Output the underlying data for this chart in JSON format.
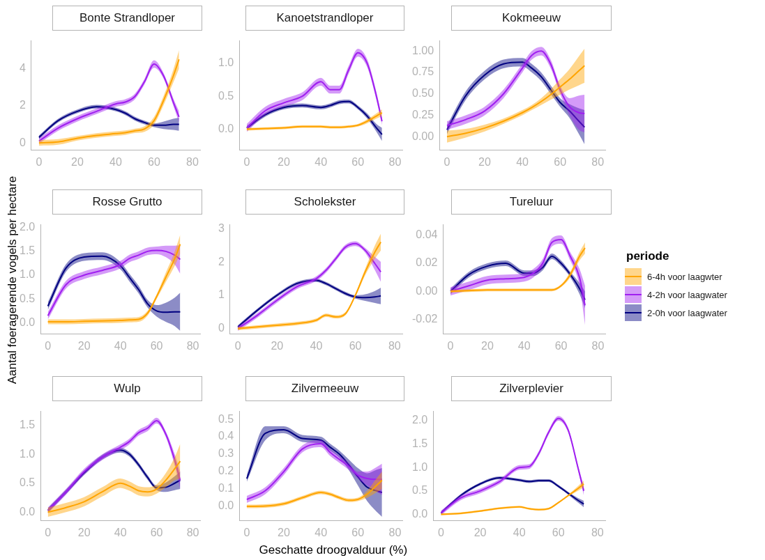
{
  "chart_data": [
    {
      "type": "line",
      "title": "Bonte Strandloper",
      "x": [
        0,
        10,
        20,
        30,
        40,
        45,
        50,
        55,
        60,
        65,
        70,
        73
      ],
      "xlim": [
        -4,
        84
      ],
      "xticks": [
        0,
        20,
        40,
        60,
        80
      ],
      "ylim": [
        -0.4,
        5.5
      ],
      "yticks": [
        0,
        2,
        4
      ],
      "grid": false,
      "legend": false,
      "marker": "none",
      "series": [
        {
          "color": "#ffa500",
          "values": [
            0,
            0.05,
            0.25,
            0.4,
            0.5,
            0.55,
            0.65,
            0.75,
            1.2,
            2.3,
            3.6,
            4.5
          ],
          "lower": [
            -0.15,
            -0.1,
            0.13,
            0.28,
            0.38,
            0.43,
            0.53,
            0.6,
            1.0,
            2.05,
            3.25,
            4.0
          ],
          "upper": [
            0.15,
            0.2,
            0.37,
            0.52,
            0.62,
            0.67,
            0.77,
            0.9,
            1.4,
            2.55,
            3.95,
            5.0
          ]
        },
        {
          "color": "#a020f0",
          "values": [
            0.1,
            0.8,
            1.3,
            1.7,
            2.1,
            2.2,
            2.5,
            3.3,
            4.25,
            3.6,
            2.2,
            1.4
          ],
          "lower": [
            -0.05,
            0.65,
            1.15,
            1.55,
            1.95,
            2.05,
            2.35,
            3.15,
            4.05,
            3.45,
            2.0,
            1.1
          ],
          "upper": [
            0.25,
            0.95,
            1.45,
            1.85,
            2.25,
            2.35,
            2.65,
            3.45,
            4.45,
            3.75,
            2.4,
            1.7
          ]
        },
        {
          "color": "#000080",
          "values": [
            0.3,
            1.2,
            1.7,
            1.95,
            1.8,
            1.6,
            1.3,
            1.1,
            0.95,
            0.95,
            1.0,
            1.0
          ],
          "lower": [
            0.2,
            1.1,
            1.6,
            1.85,
            1.7,
            1.5,
            1.2,
            1.0,
            0.85,
            0.75,
            0.7,
            0.65
          ],
          "upper": [
            0.4,
            1.3,
            1.8,
            2.05,
            1.9,
            1.7,
            1.4,
            1.2,
            1.05,
            1.15,
            1.3,
            1.35
          ]
        }
      ]
    },
    {
      "type": "line",
      "title": "Kanoetstrandloper",
      "x": [
        0,
        10,
        20,
        30,
        40,
        45,
        50,
        55,
        60,
        65,
        70,
        73
      ],
      "xlim": [
        -4,
        84
      ],
      "xticks": [
        0,
        20,
        40,
        60,
        80
      ],
      "ylim": [
        -0.32,
        1.34
      ],
      "yticks": [
        {
          "value": 0,
          "label": "0.0"
        },
        {
          "value": 0.5,
          "label": "0.5"
        },
        {
          "value": 1,
          "label": "1.0"
        }
      ],
      "grid": false,
      "legend": false,
      "marker": "none",
      "series": [
        {
          "color": "#ffa500",
          "values": [
            0,
            0.01,
            0.02,
            0.04,
            0.04,
            0.03,
            0.03,
            0.04,
            0.06,
            0.12,
            0.2,
            0.25
          ],
          "lower": [
            -0.02,
            -0.01,
            0,
            0.02,
            0.02,
            0.01,
            0.01,
            0.02,
            0.04,
            0.09,
            0.16,
            0.2
          ],
          "upper": [
            0.02,
            0.03,
            0.04,
            0.06,
            0.06,
            0.05,
            0.05,
            0.06,
            0.08,
            0.15,
            0.24,
            0.3
          ]
        },
        {
          "color": "#a020f0",
          "values": [
            0.02,
            0.28,
            0.4,
            0.5,
            0.72,
            0.6,
            0.6,
            0.9,
            1.16,
            1.0,
            0.5,
            0.12
          ],
          "lower": [
            -0.04,
            0.22,
            0.34,
            0.44,
            0.66,
            0.54,
            0.54,
            0.84,
            1.1,
            0.94,
            0.44,
            0.06
          ],
          "upper": [
            0.08,
            0.34,
            0.46,
            0.56,
            0.78,
            0.66,
            0.66,
            0.96,
            1.22,
            1.06,
            0.56,
            0.18
          ]
        },
        {
          "color": "#000080",
          "values": [
            0.02,
            0.22,
            0.33,
            0.36,
            0.33,
            0.36,
            0.41,
            0.42,
            0.33,
            0.2,
            0.02,
            -0.08
          ],
          "lower": [
            -0.01,
            0.19,
            0.3,
            0.33,
            0.3,
            0.33,
            0.38,
            0.39,
            0.3,
            0.16,
            -0.04,
            -0.18
          ],
          "upper": [
            0.05,
            0.25,
            0.36,
            0.39,
            0.36,
            0.39,
            0.44,
            0.45,
            0.36,
            0.24,
            0.08,
            0.02
          ]
        }
      ]
    },
    {
      "type": "line",
      "title": "Kokmeeuw",
      "x": [
        0,
        10,
        20,
        30,
        40,
        45,
        50,
        55,
        60,
        65,
        70,
        73
      ],
      "xlim": [
        -4,
        84
      ],
      "xticks": [
        0,
        20,
        40,
        60,
        80
      ],
      "ylim": [
        -0.16,
        1.12
      ],
      "yticks": [
        {
          "value": 0,
          "label": "0.00"
        },
        {
          "value": 0.25,
          "label": "0.25"
        },
        {
          "value": 0.5,
          "label": "0.50"
        },
        {
          "value": 0.75,
          "label": "0.75"
        },
        {
          "value": 1,
          "label": "1.00"
        }
      ],
      "grid": false,
      "legend": false,
      "marker": "none",
      "series": [
        {
          "color": "#ffa500",
          "values": [
            0,
            0.04,
            0.1,
            0.18,
            0.28,
            0.34,
            0.41,
            0.49,
            0.58,
            0.67,
            0.77,
            0.83
          ],
          "lower": [
            -0.07,
            -0.01,
            0.06,
            0.15,
            0.25,
            0.31,
            0.37,
            0.43,
            0.49,
            0.55,
            0.6,
            0.63
          ],
          "upper": [
            0.07,
            0.09,
            0.14,
            0.21,
            0.31,
            0.37,
            0.45,
            0.55,
            0.67,
            0.79,
            0.94,
            1.03
          ]
        },
        {
          "color": "#a020f0",
          "values": [
            0.13,
            0.2,
            0.3,
            0.5,
            0.8,
            0.95,
            1.0,
            0.85,
            0.55,
            0.35,
            0.28,
            0.27
          ],
          "lower": [
            0.08,
            0.15,
            0.25,
            0.45,
            0.75,
            0.9,
            0.95,
            0.8,
            0.5,
            0.25,
            0.08,
            0.05
          ],
          "upper": [
            0.18,
            0.25,
            0.35,
            0.55,
            0.85,
            1.0,
            1.05,
            0.9,
            0.6,
            0.45,
            0.48,
            0.49
          ]
        },
        {
          "color": "#000080",
          "values": [
            0.08,
            0.48,
            0.72,
            0.85,
            0.87,
            0.8,
            0.7,
            0.55,
            0.4,
            0.3,
            0.18,
            0.11
          ],
          "lower": [
            0.03,
            0.43,
            0.67,
            0.8,
            0.82,
            0.75,
            0.65,
            0.5,
            0.35,
            0.22,
            0.03,
            -0.09
          ],
          "upper": [
            0.13,
            0.53,
            0.77,
            0.9,
            0.92,
            0.85,
            0.75,
            0.6,
            0.45,
            0.38,
            0.33,
            0.31
          ]
        }
      ]
    },
    {
      "type": "line",
      "title": "Rosse Grutto",
      "ylabel": "Aantal foeragerende vogels per hectare",
      "x": [
        0,
        10,
        20,
        30,
        40,
        45,
        50,
        55,
        60,
        65,
        70,
        73
      ],
      "xlim": [
        -4,
        84
      ],
      "xticks": [
        0,
        20,
        40,
        60,
        80
      ],
      "ylim": [
        -0.24,
        2.06
      ],
      "yticks": [
        {
          "value": 0,
          "label": "0.0"
        },
        {
          "value": 0.5,
          "label": "0.5"
        },
        {
          "value": 1,
          "label": "1.0"
        },
        {
          "value": 1.5,
          "label": "1.5"
        },
        {
          "value": 2,
          "label": "2.0"
        }
      ],
      "grid": false,
      "legend": false,
      "marker": "none",
      "series": [
        {
          "color": "#ffa500",
          "values": [
            0.02,
            0.02,
            0.03,
            0.04,
            0.05,
            0.06,
            0.07,
            0.2,
            0.55,
            0.95,
            1.35,
            1.65
          ],
          "lower": [
            -0.03,
            -0.03,
            -0.02,
            -0.01,
            0,
            0.01,
            0.02,
            0.15,
            0.5,
            0.85,
            1.2,
            1.45
          ],
          "upper": [
            0.07,
            0.07,
            0.08,
            0.09,
            0.1,
            0.11,
            0.12,
            0.25,
            0.6,
            1.05,
            1.5,
            1.85
          ]
        },
        {
          "color": "#a020f0",
          "values": [
            0.15,
            0.8,
            1.0,
            1.1,
            1.22,
            1.35,
            1.42,
            1.5,
            1.52,
            1.5,
            1.42,
            1.33
          ],
          "lower": [
            0.07,
            0.72,
            0.92,
            1.02,
            1.14,
            1.27,
            1.34,
            1.42,
            1.44,
            1.38,
            1.22,
            1.03
          ],
          "upper": [
            0.23,
            0.88,
            1.08,
            1.18,
            1.3,
            1.43,
            1.5,
            1.58,
            1.6,
            1.62,
            1.62,
            1.63
          ]
        },
        {
          "color": "#000080",
          "values": [
            0.35,
            1.15,
            1.38,
            1.4,
            1.2,
            0.95,
            0.7,
            0.4,
            0.25,
            0.22,
            0.23,
            0.23
          ],
          "lower": [
            0.27,
            1.07,
            1.3,
            1.32,
            1.12,
            0.87,
            0.62,
            0.32,
            0.13,
            0.02,
            -0.07,
            -0.17
          ],
          "upper": [
            0.43,
            1.23,
            1.46,
            1.48,
            1.28,
            1.03,
            0.78,
            0.48,
            0.37,
            0.42,
            0.53,
            0.63
          ]
        }
      ]
    },
    {
      "type": "line",
      "title": "Scholekster",
      "x": [
        0,
        10,
        20,
        30,
        40,
        45,
        50,
        55,
        60,
        65,
        70,
        73
      ],
      "xlim": [
        -4,
        84
      ],
      "xticks": [
        0,
        20,
        40,
        60,
        80
      ],
      "ylim": [
        -0.17,
        3.12
      ],
      "yticks": [
        0,
        1,
        2,
        3
      ],
      "grid": false,
      "legend": false,
      "marker": "none",
      "series": [
        {
          "color": "#ffa500",
          "values": [
            0,
            0.05,
            0.1,
            0.15,
            0.25,
            0.4,
            0.35,
            0.45,
            1.0,
            1.7,
            2.3,
            2.6
          ],
          "lower": [
            -0.05,
            0,
            0.05,
            0.1,
            0.2,
            0.35,
            0.3,
            0.4,
            0.95,
            1.6,
            2.1,
            2.35
          ],
          "upper": [
            0.05,
            0.1,
            0.15,
            0.2,
            0.3,
            0.45,
            0.4,
            0.5,
            1.05,
            1.8,
            2.5,
            2.85
          ]
        },
        {
          "color": "#a020f0",
          "values": [
            0,
            0.4,
            0.85,
            1.25,
            1.5,
            1.75,
            2.1,
            2.45,
            2.55,
            2.35,
            1.95,
            1.7
          ],
          "lower": [
            -0.07,
            0.33,
            0.78,
            1.18,
            1.43,
            1.68,
            2.03,
            2.38,
            2.48,
            2.28,
            1.75,
            1.4
          ],
          "upper": [
            0.07,
            0.47,
            0.92,
            1.32,
            1.57,
            1.82,
            2.17,
            2.52,
            2.62,
            2.42,
            2.15,
            2.0
          ]
        },
        {
          "color": "#000080",
          "values": [
            0.05,
            0.55,
            1.0,
            1.35,
            1.45,
            1.35,
            1.2,
            1.05,
            0.95,
            0.93,
            0.95,
            0.98
          ],
          "lower": [
            0,
            0.5,
            0.95,
            1.3,
            1.4,
            1.3,
            1.15,
            1.0,
            0.9,
            0.83,
            0.77,
            0.73
          ],
          "upper": [
            0.1,
            0.6,
            1.05,
            1.4,
            1.5,
            1.4,
            1.25,
            1.1,
            1.0,
            1.03,
            1.13,
            1.23
          ]
        }
      ]
    },
    {
      "type": "line",
      "title": "Tureluur",
      "legend_title": "periode",
      "x": [
        0,
        10,
        20,
        30,
        40,
        45,
        50,
        55,
        60,
        65,
        70,
        73
      ],
      "xlim": [
        -4,
        84
      ],
      "xticks": [
        0,
        20,
        40,
        60,
        80
      ],
      "ylim": [
        -0.0306,
        0.0476
      ],
      "yticks": [
        {
          "value": -0.02,
          "label": "-0.02"
        },
        {
          "value": 0,
          "label": "0.00"
        },
        {
          "value": 0.02,
          "label": "0.02"
        },
        {
          "value": 0.04,
          "label": "0.04"
        }
      ],
      "grid": false,
      "legend": "right",
      "marker": "none",
      "series": [
        {
          "name": "6-4h voor laagwter",
          "color": "#ffa500",
          "values": [
            0,
            0.0005,
            0.001,
            0.001,
            0.001,
            0.001,
            0.001,
            0.001,
            0.004,
            0.012,
            0.025,
            0.031
          ],
          "lower": [
            -0.001,
            -0.0005,
            0,
            0,
            0,
            0,
            0,
            0,
            0.003,
            0.01,
            0.022,
            0.027
          ],
          "upper": [
            0.001,
            0.0015,
            0.002,
            0.002,
            0.002,
            0.002,
            0.002,
            0.002,
            0.005,
            0.014,
            0.028,
            0.035
          ]
        },
        {
          "name": "4-2h voor laagwater",
          "color": "#a020f0",
          "values": [
            0,
            0.004,
            0.008,
            0.009,
            0.01,
            0.013,
            0.02,
            0.035,
            0.037,
            0.025,
            0.01,
            -0.01
          ],
          "lower": [
            -0.003,
            0.001,
            0.005,
            0.006,
            0.007,
            0.01,
            0.017,
            0.032,
            0.034,
            0.022,
            0.004,
            -0.024
          ],
          "upper": [
            0.003,
            0.007,
            0.011,
            0.012,
            0.013,
            0.016,
            0.023,
            0.038,
            0.04,
            0.028,
            0.016,
            0.004
          ]
        },
        {
          "name": "2-0h voor laagwater",
          "color": "#000080",
          "values": [
            0,
            0.012,
            0.018,
            0.02,
            0.013,
            0.013,
            0.017,
            0.025,
            0.02,
            0.012,
            0.002,
            -0.006
          ],
          "lower": [
            -0.002,
            0.01,
            0.016,
            0.018,
            0.011,
            0.011,
            0.015,
            0.023,
            0.018,
            0.01,
            -0.002,
            -0.012
          ],
          "upper": [
            0.002,
            0.014,
            0.02,
            0.022,
            0.015,
            0.015,
            0.019,
            0.027,
            0.022,
            0.014,
            0.006,
            0
          ]
        }
      ]
    },
    {
      "type": "line",
      "title": "Wulp",
      "x": [
        0,
        10,
        20,
        30,
        40,
        45,
        50,
        55,
        60,
        65,
        70,
        73
      ],
      "xlim": [
        -4,
        84
      ],
      "xticks": [
        0,
        20,
        40,
        60,
        80
      ],
      "ylim": [
        -0.15,
        1.74
      ],
      "yticks": [
        {
          "value": 0,
          "label": "0.0"
        },
        {
          "value": 0.5,
          "label": "0.5"
        },
        {
          "value": 1,
          "label": "1.0"
        },
        {
          "value": 1.5,
          "label": "1.5"
        }
      ],
      "grid": false,
      "legend": false,
      "marker": "none",
      "series": [
        {
          "color": "#ffa500",
          "values": [
            0,
            0.08,
            0.18,
            0.35,
            0.5,
            0.45,
            0.37,
            0.35,
            0.4,
            0.55,
            0.75,
            0.88
          ],
          "lower": [
            -0.08,
            0,
            0.1,
            0.27,
            0.42,
            0.37,
            0.29,
            0.27,
            0.32,
            0.43,
            0.55,
            0.58
          ],
          "upper": [
            0.08,
            0.16,
            0.26,
            0.43,
            0.58,
            0.53,
            0.45,
            0.43,
            0.48,
            0.67,
            0.95,
            1.18
          ]
        },
        {
          "color": "#a020f0",
          "values": [
            0.03,
            0.35,
            0.7,
            0.95,
            1.12,
            1.22,
            1.37,
            1.45,
            1.58,
            1.35,
            0.9,
            0.55
          ],
          "lower": [
            -0.02,
            0.3,
            0.65,
            0.9,
            1.07,
            1.17,
            1.32,
            1.4,
            1.53,
            1.3,
            0.8,
            0.4
          ],
          "upper": [
            0.08,
            0.4,
            0.75,
            1.0,
            1.17,
            1.27,
            1.42,
            1.5,
            1.63,
            1.4,
            1.0,
            0.7
          ]
        },
        {
          "color": "#000080",
          "values": [
            0.03,
            0.35,
            0.68,
            0.95,
            1.07,
            1.0,
            0.82,
            0.6,
            0.42,
            0.43,
            0.5,
            0.55
          ],
          "lower": [
            -0.01,
            0.31,
            0.64,
            0.91,
            1.03,
            0.96,
            0.78,
            0.56,
            0.38,
            0.35,
            0.38,
            0.4
          ],
          "upper": [
            0.07,
            0.39,
            0.72,
            0.99,
            1.11,
            1.04,
            0.86,
            0.64,
            0.46,
            0.51,
            0.62,
            0.7
          ]
        }
      ]
    },
    {
      "type": "line",
      "title": "Zilvermeeuw",
      "xlabel": "Geschatte droogvalduur (%)",
      "x": [
        0,
        10,
        20,
        30,
        40,
        45,
        50,
        55,
        60,
        65,
        70,
        73
      ],
      "xlim": [
        -4,
        84
      ],
      "xticks": [
        0,
        20,
        40,
        60,
        80
      ],
      "ylim": [
        -0.083,
        0.546
      ],
      "yticks": [
        {
          "value": 0,
          "label": "0.0"
        },
        {
          "value": 0.1,
          "label": "0.1"
        },
        {
          "value": 0.2,
          "label": "0.2"
        },
        {
          "value": 0.3,
          "label": "0.3"
        },
        {
          "value": 0.4,
          "label": "0.4"
        },
        {
          "value": 0.5,
          "label": "0.5"
        }
      ],
      "grid": false,
      "legend": false,
      "marker": "none",
      "series": [
        {
          "color": "#ffa500",
          "values": [
            0,
            0.002,
            0.015,
            0.05,
            0.08,
            0.07,
            0.05,
            0.035,
            0.04,
            0.07,
            0.12,
            0.15
          ],
          "lower": [
            -0.01,
            -0.008,
            0.005,
            0.04,
            0.07,
            0.06,
            0.04,
            0.025,
            0.03,
            0.05,
            0.08,
            0.1
          ],
          "upper": [
            0.01,
            0.012,
            0.025,
            0.06,
            0.09,
            0.08,
            0.06,
            0.045,
            0.05,
            0.09,
            0.16,
            0.2
          ]
        },
        {
          "color": "#a020f0",
          "values": [
            0.04,
            0.09,
            0.2,
            0.33,
            0.36,
            0.31,
            0.27,
            0.23,
            0.18,
            0.16,
            0.155,
            0.155
          ],
          "lower": [
            0.02,
            0.07,
            0.18,
            0.31,
            0.34,
            0.29,
            0.25,
            0.21,
            0.16,
            0.12,
            0.085,
            0.065
          ],
          "upper": [
            0.06,
            0.11,
            0.22,
            0.35,
            0.38,
            0.33,
            0.29,
            0.25,
            0.2,
            0.2,
            0.225,
            0.245
          ]
        },
        {
          "color": "#000080",
          "values": [
            0.16,
            0.42,
            0.44,
            0.39,
            0.38,
            0.34,
            0.3,
            0.24,
            0.17,
            0.11,
            0.09,
            0.08
          ],
          "lower": [
            0.14,
            0.38,
            0.42,
            0.37,
            0.36,
            0.32,
            0.28,
            0.21,
            0.12,
            0.03,
            -0.03,
            -0.06
          ],
          "upper": [
            0.18,
            0.46,
            0.46,
            0.41,
            0.4,
            0.36,
            0.32,
            0.27,
            0.22,
            0.19,
            0.21,
            0.22
          ]
        }
      ]
    },
    {
      "type": "line",
      "title": "Zilverplevier",
      "x": [
        0,
        10,
        20,
        30,
        40,
        45,
        50,
        55,
        60,
        65,
        70,
        73
      ],
      "xlim": [
        -4,
        84
      ],
      "xticks": [
        0,
        20,
        40,
        60,
        80
      ],
      "ylim": [
        -0.14,
        2.2
      ],
      "yticks": [
        {
          "value": 0,
          "label": "0.0"
        },
        {
          "value": 0.5,
          "label": "0.5"
        },
        {
          "value": 1,
          "label": "1.0"
        },
        {
          "value": 1.5,
          "label": "1.5"
        },
        {
          "value": 2,
          "label": "2.0"
        }
      ],
      "grid": false,
      "legend": false,
      "marker": "none",
      "series": [
        {
          "color": "#ffa500",
          "values": [
            0,
            0.02,
            0.07,
            0.13,
            0.16,
            0.12,
            0.1,
            0.12,
            0.25,
            0.4,
            0.55,
            0.65
          ],
          "lower": [
            -0.02,
            0,
            0.05,
            0.11,
            0.14,
            0.1,
            0.08,
            0.1,
            0.23,
            0.38,
            0.5,
            0.58
          ],
          "upper": [
            0.02,
            0.04,
            0.09,
            0.15,
            0.18,
            0.14,
            0.12,
            0.14,
            0.27,
            0.42,
            0.6,
            0.72
          ]
        },
        {
          "color": "#a020f0",
          "values": [
            0.03,
            0.35,
            0.5,
            0.7,
            1.0,
            1.02,
            1.3,
            1.75,
            2.05,
            1.8,
            1.0,
            0.5
          ],
          "lower": [
            -0.02,
            0.3,
            0.45,
            0.65,
            0.95,
            0.97,
            1.25,
            1.7,
            2.0,
            1.75,
            0.95,
            0.4
          ],
          "upper": [
            0.08,
            0.4,
            0.55,
            0.75,
            1.05,
            1.07,
            1.35,
            1.8,
            2.1,
            1.85,
            1.05,
            0.6
          ]
        },
        {
          "color": "#000080",
          "values": [
            0.03,
            0.4,
            0.65,
            0.78,
            0.73,
            0.7,
            0.72,
            0.72,
            0.6,
            0.45,
            0.3,
            0.22
          ],
          "lower": [
            0,
            0.37,
            0.62,
            0.75,
            0.7,
            0.67,
            0.69,
            0.69,
            0.57,
            0.42,
            0.25,
            0.15
          ],
          "upper": [
            0.06,
            0.43,
            0.68,
            0.81,
            0.76,
            0.73,
            0.75,
            0.75,
            0.63,
            0.48,
            0.35,
            0.29
          ]
        }
      ]
    }
  ]
}
